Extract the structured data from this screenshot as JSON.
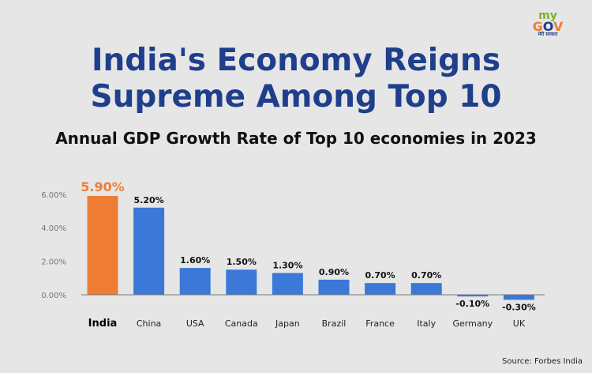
{
  "logo": {
    "text_my": "my",
    "text_gov": "GOV",
    "tagline": "मेरी सरकार"
  },
  "title_line1": "India's Economy Reigns",
  "title_line2": "Supreme Among Top 10",
  "source": "Source: Forbes India",
  "colors": {
    "highlight": "#ee7d33",
    "bar": "#3b78d8",
    "title": "#1f3f8c"
  },
  "chart_data": {
    "type": "bar",
    "title": "Annual GDP Growth Rate of Top 10 economies in 2023",
    "categories": [
      "India",
      "China",
      "USA",
      "Canada",
      "Japan",
      "Brazil",
      "France",
      "Italy",
      "Germany",
      "UK"
    ],
    "values": [
      5.9,
      5.2,
      1.6,
      1.5,
      1.3,
      0.9,
      0.7,
      0.7,
      -0.1,
      -0.3
    ],
    "data_labels": [
      "5.90%",
      "5.20%",
      "1.60%",
      "1.50%",
      "1.30%",
      "0.90%",
      "0.70%",
      "0.70%",
      "-0.10%",
      "-0.30%"
    ],
    "yticks": [
      "0.00%",
      "2.00%",
      "4.00%",
      "6.00%"
    ],
    "ytick_values": [
      0,
      2,
      4,
      6
    ],
    "ylim": [
      -0.5,
      6.5
    ],
    "highlight_category": "India",
    "grid": false,
    "legend": "none"
  }
}
